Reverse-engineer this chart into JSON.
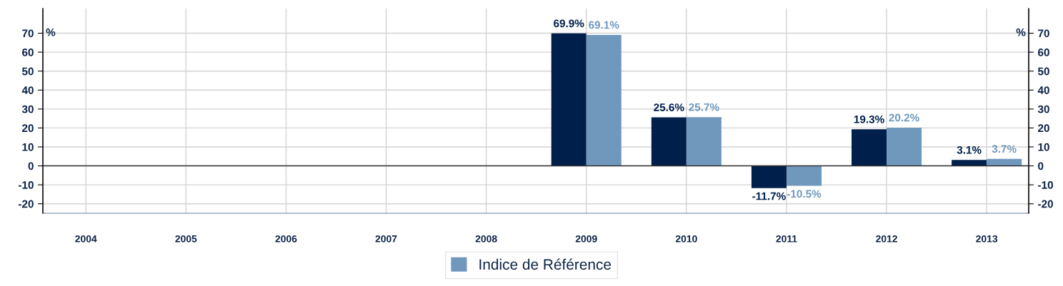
{
  "chart_data": {
    "type": "bar",
    "categories": [
      "2004",
      "2005",
      "2006",
      "2007",
      "2008",
      "2009",
      "2010",
      "2011",
      "2012",
      "2013"
    ],
    "series": [
      {
        "color": "#001f4b",
        "values": [
          null,
          null,
          null,
          null,
          null,
          69.9,
          25.6,
          -11.7,
          19.3,
          3.1
        ],
        "value_labels": [
          null,
          null,
          null,
          null,
          null,
          "69.9%",
          "25.6%",
          "-11.7%",
          "19.3%",
          "3.1%"
        ]
      },
      {
        "name": "Indice de Référence",
        "color": "#7098bd",
        "values": [
          null,
          null,
          null,
          null,
          null,
          69.1,
          25.7,
          -10.5,
          20.2,
          3.7
        ],
        "value_labels": [
          null,
          null,
          null,
          null,
          null,
          "69.1%",
          "25.7%",
          "-10.5%",
          "20.2%",
          "3.7%"
        ]
      }
    ],
    "ylabel": "%",
    "y2label": "%",
    "ylim": [
      -25,
      83
    ],
    "yticks": [
      -20,
      -10,
      0,
      10,
      20,
      30,
      40,
      50,
      60,
      70
    ],
    "y2lim": [
      -25,
      83
    ],
    "y2ticks": [
      -20,
      -10,
      0,
      10,
      20,
      30,
      40,
      50,
      60,
      70
    ],
    "grid": true,
    "legend": "bottom"
  }
}
